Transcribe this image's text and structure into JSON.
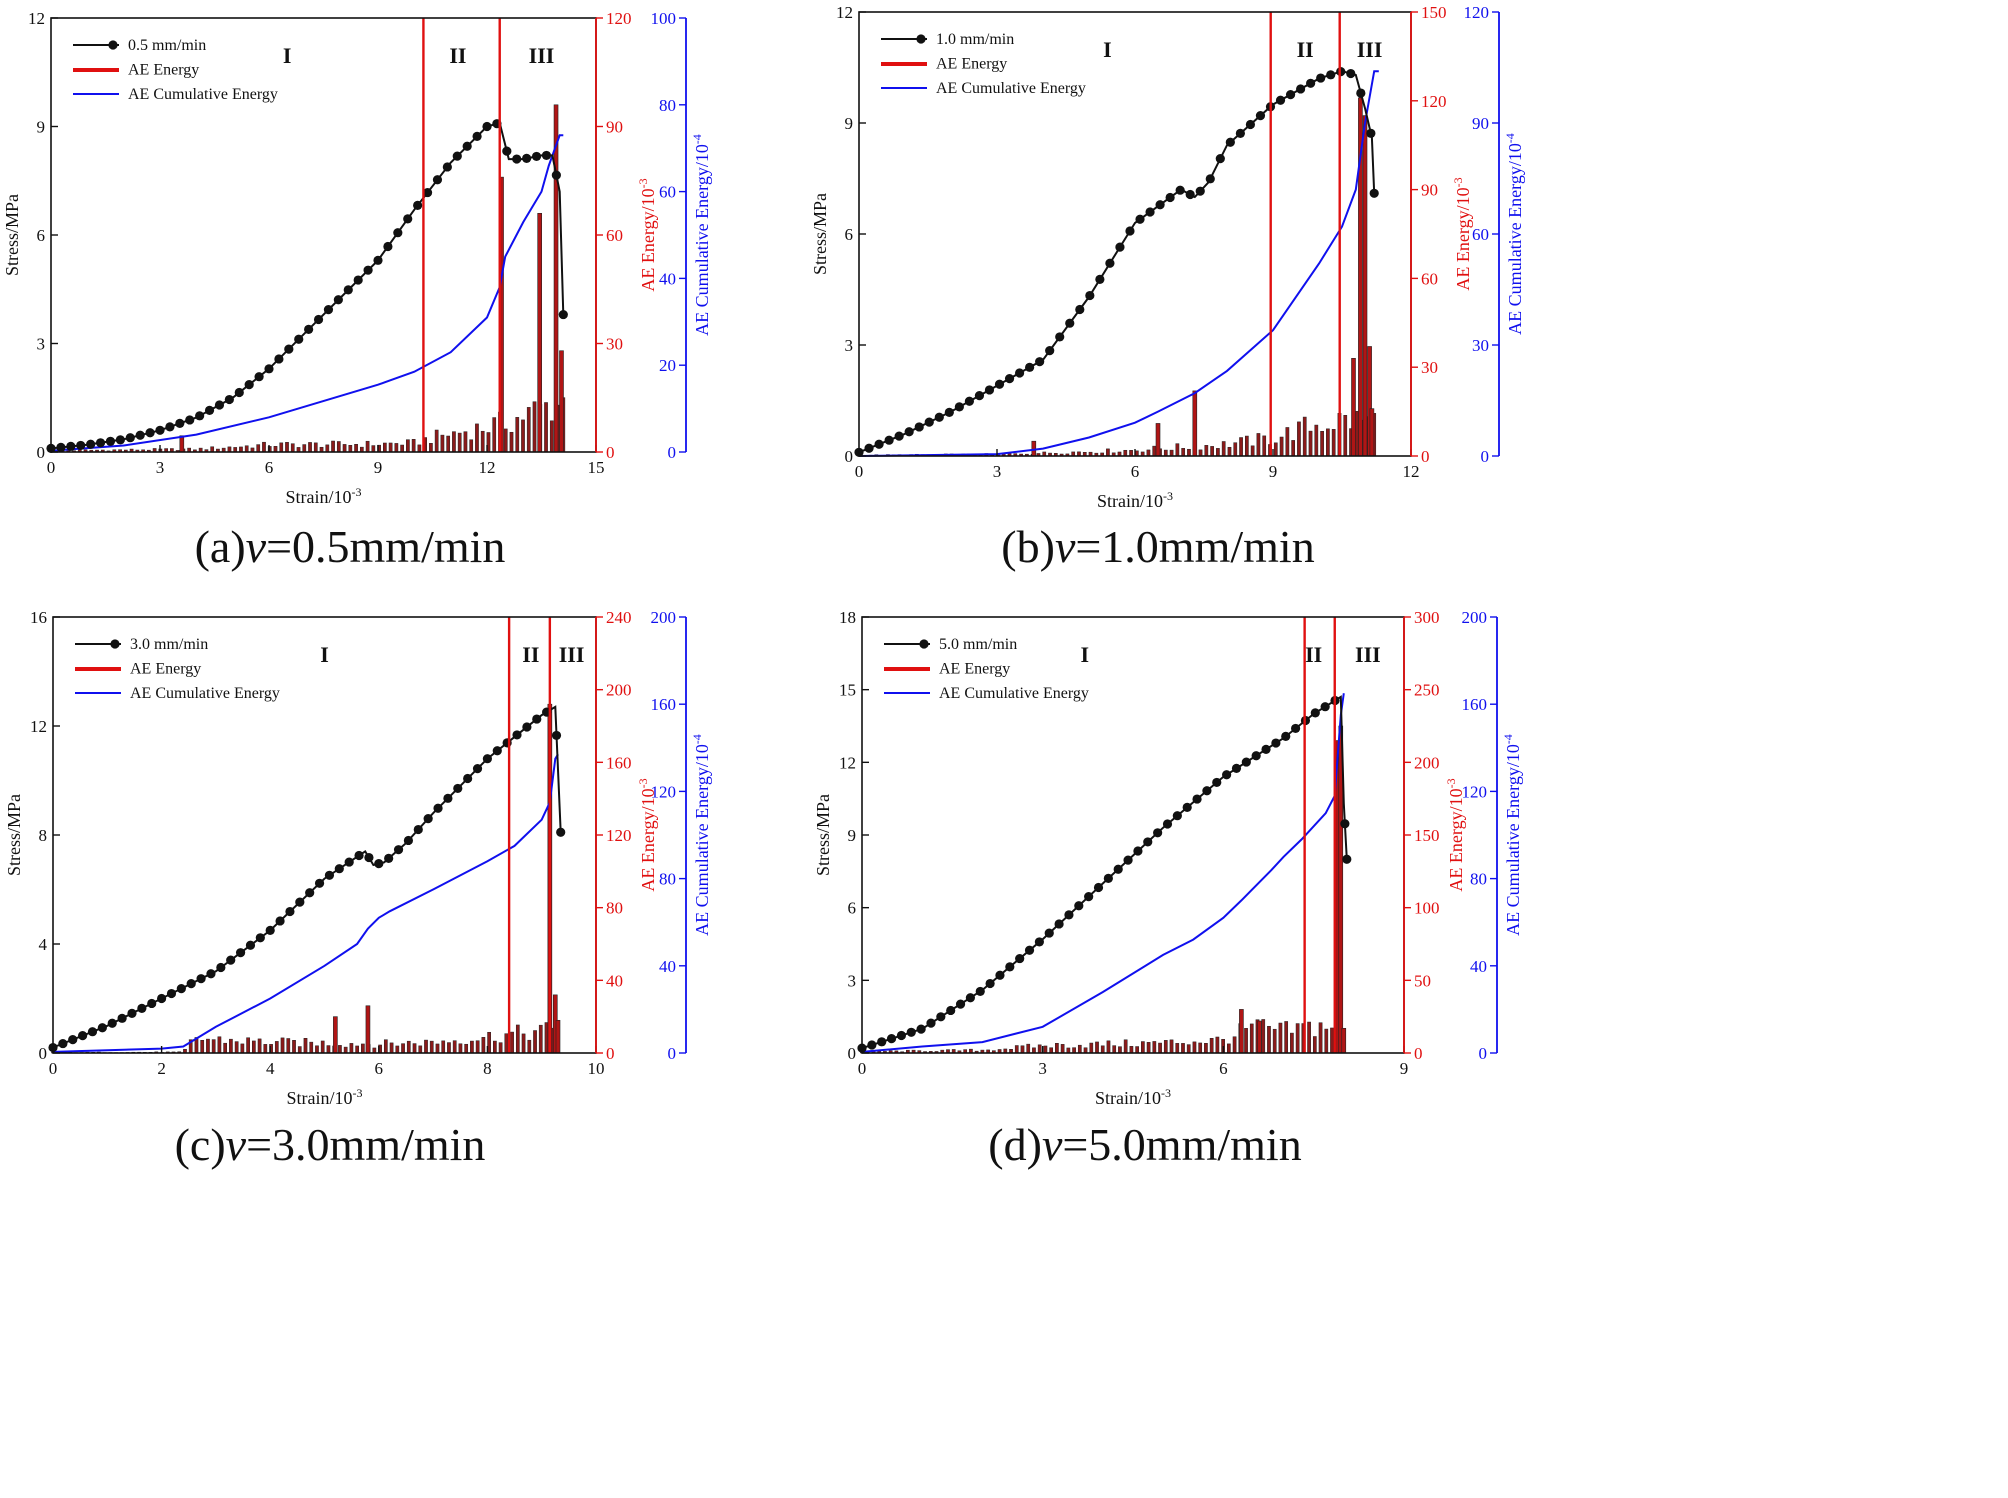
{
  "chart_data": [
    {
      "type": "line",
      "caption": {
        "prefix": "(a)",
        "var": "v",
        "rest": "=0.5mm/min"
      },
      "xlabel": "Strain/10-3",
      "ylabel": "Stress/MPa",
      "ylabel2": "AE Energy/10-3",
      "ylabel3": "AE Cumulative Energy/10-4",
      "xlim": [
        0,
        15
      ],
      "xticks": [
        0,
        3,
        6,
        9,
        12,
        15
      ],
      "ylim": [
        0,
        12
      ],
      "yticks": [
        0,
        3,
        6,
        9,
        12
      ],
      "y2lim": [
        0,
        120
      ],
      "y2ticks": [
        0,
        30,
        60,
        90,
        120
      ],
      "y3lim": [
        0,
        100
      ],
      "y3ticks": [
        0,
        20,
        40,
        60,
        80,
        100
      ],
      "legend": [
        "0.5 mm/min",
        "AE Energy",
        "AE Cumulative Energy"
      ],
      "stages": [
        "I",
        "II",
        "III"
      ],
      "stage_x": [
        6.5,
        11.2,
        13.5
      ],
      "boundaries": [
        10.25,
        12.35
      ],
      "stress": [
        [
          0,
          0.1
        ],
        [
          1,
          0.2
        ],
        [
          2,
          0.35
        ],
        [
          3,
          0.6
        ],
        [
          4,
          0.95
        ],
        [
          5,
          1.5
        ],
        [
          6,
          2.3
        ],
        [
          7,
          3.3
        ],
        [
          8,
          4.3
        ],
        [
          9,
          5.3
        ],
        [
          10,
          6.7
        ],
        [
          11,
          8.0
        ],
        [
          12,
          9.0
        ],
        [
          12.35,
          9.1
        ],
        [
          12.6,
          8.1
        ],
        [
          13,
          8.1
        ],
        [
          13.5,
          8.2
        ],
        [
          13.8,
          8.2
        ],
        [
          14,
          7.2
        ],
        [
          14.1,
          3.8
        ]
      ],
      "cumulative": [
        [
          0,
          0.3
        ],
        [
          2,
          1.5
        ],
        [
          4,
          4
        ],
        [
          6,
          8
        ],
        [
          8,
          13
        ],
        [
          9,
          15.5
        ],
        [
          10,
          18.5
        ],
        [
          11,
          23
        ],
        [
          12,
          31
        ],
        [
          12.35,
          38
        ],
        [
          12.5,
          45
        ],
        [
          13,
          53
        ],
        [
          13.5,
          60
        ],
        [
          13.7,
          66
        ],
        [
          14,
          73
        ],
        [
          14.1,
          73
        ]
      ],
      "ae_base": [
        [
          0,
          0.4
        ],
        [
          2,
          0.6
        ],
        [
          4,
          0.8
        ],
        [
          6,
          2
        ],
        [
          9,
          2.2
        ],
        [
          10,
          2.5
        ],
        [
          10.5,
          4
        ],
        [
          11,
          5
        ],
        [
          12,
          7
        ],
        [
          12.5,
          8
        ],
        [
          13.5,
          12
        ],
        [
          14.1,
          14
        ]
      ],
      "ae_spikes": [
        [
          3.6,
          4.5
        ],
        [
          12.4,
          76
        ],
        [
          13.45,
          66
        ],
        [
          13.9,
          96
        ],
        [
          14.05,
          28
        ]
      ]
    },
    {
      "type": "line",
      "caption": {
        "prefix": "(b)",
        "var": "v",
        "rest": "=1.0mm/min"
      },
      "xlabel": "Strain/10-3",
      "ylabel": "Stress/MPa",
      "ylabel2": "AE Energy/10-3",
      "ylabel3": "AE Cumulative Energy/10-4",
      "xlim": [
        0,
        12
      ],
      "xticks": [
        0,
        3,
        6,
        9,
        12
      ],
      "ylim": [
        0,
        12
      ],
      "yticks": [
        0,
        3,
        6,
        9,
        12
      ],
      "y2lim": [
        0,
        150
      ],
      "y2ticks": [
        0,
        30,
        60,
        90,
        120,
        150
      ],
      "y3lim": [
        0,
        120
      ],
      "y3ticks": [
        0,
        30,
        60,
        90,
        120
      ],
      "legend": [
        "1.0 mm/min",
        "AE Energy",
        "AE Cumulative Energy"
      ],
      "stages": [
        "I",
        "II",
        "III"
      ],
      "stage_x": [
        5.4,
        9.7,
        11.1
      ],
      "boundaries": [
        8.95,
        10.45
      ],
      "stress": [
        [
          0,
          0.1
        ],
        [
          1,
          0.6
        ],
        [
          2,
          1.2
        ],
        [
          3,
          1.9
        ],
        [
          4,
          2.6
        ],
        [
          5,
          4.3
        ],
        [
          6,
          6.3
        ],
        [
          7,
          7.2
        ],
        [
          7.3,
          7.0
        ],
        [
          7.6,
          7.4
        ],
        [
          8,
          8.4
        ],
        [
          9,
          9.5
        ],
        [
          10,
          10.2
        ],
        [
          10.5,
          10.4
        ],
        [
          10.8,
          10.3
        ],
        [
          11,
          9.4
        ],
        [
          11.15,
          8.6
        ],
        [
          11.2,
          7.1
        ]
      ],
      "cumulative": [
        [
          0,
          0
        ],
        [
          3,
          0.5
        ],
        [
          4,
          2
        ],
        [
          5,
          5
        ],
        [
          6,
          9
        ],
        [
          6.5,
          12
        ],
        [
          7.3,
          17
        ],
        [
          8,
          23
        ],
        [
          9,
          34
        ],
        [
          10,
          52
        ],
        [
          10.5,
          62
        ],
        [
          10.8,
          72
        ],
        [
          11,
          90
        ],
        [
          11.2,
          104
        ],
        [
          11.3,
          104
        ]
      ],
      "ae_base": [
        [
          0,
          0.3
        ],
        [
          3,
          0.6
        ],
        [
          4,
          1
        ],
        [
          6,
          2
        ],
        [
          8,
          4
        ],
        [
          9,
          6
        ],
        [
          10,
          11
        ],
        [
          10.5,
          12
        ],
        [
          11.2,
          12
        ]
      ],
      "ae_spikes": [
        [
          3.8,
          5
        ],
        [
          6.5,
          11
        ],
        [
          7.3,
          22
        ],
        [
          10.75,
          33
        ],
        [
          10.9,
          121
        ],
        [
          11.0,
          115
        ],
        [
          11.1,
          37
        ],
        [
          11.15,
          16
        ]
      ]
    },
    {
      "type": "line",
      "caption": {
        "prefix": "(c)",
        "var": "v",
        "rest": "=3.0mm/min"
      },
      "xlabel": "Strain/10-3",
      "ylabel": "Stress/MPa",
      "ylabel2": "AE Energy/10-3",
      "ylabel3": "AE Cumulative Energy/10-4",
      "xlim": [
        0,
        10
      ],
      "xticks": [
        0,
        2,
        4,
        6,
        8,
        10
      ],
      "ylim": [
        0,
        16
      ],
      "yticks": [
        0,
        4,
        8,
        12,
        16
      ],
      "y2lim": [
        0,
        240
      ],
      "y2ticks": [
        0,
        40,
        80,
        120,
        160,
        200,
        240
      ],
      "y3lim": [
        0,
        200
      ],
      "y3ticks": [
        0,
        40,
        80,
        120,
        160,
        200
      ],
      "legend": [
        "3.0 mm/min",
        "AE Energy",
        "AE Cumulative Energy"
      ],
      "stages": [
        "I",
        "II",
        "III"
      ],
      "stage_x": [
        5.0,
        8.8,
        9.55
      ],
      "boundaries": [
        8.4,
        9.15
      ],
      "stress": [
        [
          0,
          0.2
        ],
        [
          1,
          1.0
        ],
        [
          2,
          2.0
        ],
        [
          3,
          3.0
        ],
        [
          4,
          4.5
        ],
        [
          5,
          6.4
        ],
        [
          5.75,
          7.4
        ],
        [
          5.9,
          6.9
        ],
        [
          6.1,
          7.0
        ],
        [
          6.5,
          7.7
        ],
        [
          7,
          8.8
        ],
        [
          8,
          10.8
        ],
        [
          9,
          12.4
        ],
        [
          9.25,
          12.7
        ],
        [
          9.35,
          8.1
        ]
      ],
      "cumulative": [
        [
          0,
          0.5
        ],
        [
          2,
          2
        ],
        [
          2.4,
          3
        ],
        [
          3,
          12
        ],
        [
          4,
          25
        ],
        [
          5,
          40
        ],
        [
          5.6,
          50
        ],
        [
          5.8,
          57
        ],
        [
          6,
          62
        ],
        [
          6.2,
          65
        ],
        [
          7,
          75
        ],
        [
          8,
          88
        ],
        [
          8.5,
          95
        ],
        [
          9,
          107
        ],
        [
          9.15,
          115
        ],
        [
          9.25,
          135
        ],
        [
          9.3,
          137
        ]
      ],
      "ae_base": [
        [
          0,
          0.3
        ],
        [
          2.4,
          0.5
        ],
        [
          2.6,
          8
        ],
        [
          4,
          6
        ],
        [
          6,
          5
        ],
        [
          7,
          6
        ],
        [
          8,
          9
        ],
        [
          9,
          12
        ],
        [
          9.3,
          13
        ]
      ],
      "ae_spikes": [
        [
          5.2,
          20
        ],
        [
          5.8,
          26
        ],
        [
          9.15,
          192
        ],
        [
          9.25,
          32
        ],
        [
          9.3,
          18
        ]
      ]
    },
    {
      "type": "line",
      "caption": {
        "prefix": "(d)",
        "var": "v",
        "rest": "=5.0mm/min"
      },
      "xlabel": "Strain/10-3",
      "ylabel": "Stress/MPa",
      "ylabel2": "AE Energy/10-3",
      "ylabel3": "AE Cumulative Energy/10-4",
      "xlim": [
        0,
        9
      ],
      "xticks": [
        0,
        3,
        6,
        9
      ],
      "ylim": [
        0,
        18
      ],
      "yticks": [
        0,
        3,
        6,
        9,
        12,
        15,
        18
      ],
      "y2lim": [
        0,
        300
      ],
      "y2ticks": [
        0,
        50,
        100,
        150,
        200,
        250,
        300
      ],
      "y3lim": [
        0,
        200
      ],
      "y3ticks": [
        0,
        40,
        80,
        120,
        160,
        200
      ],
      "legend": [
        "5.0 mm/min",
        "AE Energy",
        "AE Cumulative Energy"
      ],
      "stages": [
        "I",
        "II",
        "III"
      ],
      "stage_x": [
        3.7,
        7.5,
        8.4
      ],
      "boundaries": [
        7.35,
        7.85
      ],
      "stress": [
        [
          0,
          0.2
        ],
        [
          1,
          1.0
        ],
        [
          2,
          2.6
        ],
        [
          3,
          4.7
        ],
        [
          4,
          7.0
        ],
        [
          5,
          9.3
        ],
        [
          6,
          11.4
        ],
        [
          7,
          13.0
        ],
        [
          7.5,
          14.0
        ],
        [
          7.95,
          14.7
        ],
        [
          8.0,
          10.3
        ],
        [
          8.05,
          8.0
        ]
      ],
      "cumulative": [
        [
          0,
          0.5
        ],
        [
          1,
          3
        ],
        [
          2,
          5
        ],
        [
          3,
          12
        ],
        [
          4,
          28
        ],
        [
          5,
          45
        ],
        [
          5.5,
          52
        ],
        [
          6,
          62
        ],
        [
          6.3,
          70
        ],
        [
          6.8,
          84
        ],
        [
          7,
          90
        ],
        [
          7.3,
          98
        ],
        [
          7.7,
          110
        ],
        [
          7.85,
          118
        ],
        [
          7.95,
          155
        ],
        [
          8.0,
          165
        ]
      ],
      "ae_base": [
        [
          0,
          1
        ],
        [
          2,
          2
        ],
        [
          3,
          5
        ],
        [
          5,
          7
        ],
        [
          6,
          9
        ],
        [
          6.5,
          18
        ],
        [
          7,
          15
        ],
        [
          7.5,
          18
        ],
        [
          7.9,
          20
        ]
      ],
      "ae_spikes": [
        [
          6.3,
          30
        ],
        [
          6.6,
          22
        ],
        [
          7.9,
          215
        ],
        [
          7.95,
          225
        ],
        [
          8.0,
          17
        ]
      ]
    }
  ]
}
